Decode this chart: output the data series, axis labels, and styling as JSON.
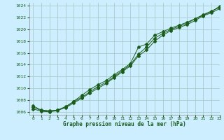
{
  "xlabel": "Graphe pression niveau de la mer (hPa)",
  "background_color": "#cceeff",
  "grid_color": "#aacccc",
  "line_color": "#1a5c1a",
  "xlim": [
    -0.5,
    23
  ],
  "ylim": [
    1005.5,
    1024.5
  ],
  "yticks": [
    1006,
    1008,
    1010,
    1012,
    1014,
    1016,
    1018,
    1020,
    1022,
    1024
  ],
  "xticks": [
    0,
    1,
    2,
    3,
    4,
    5,
    6,
    7,
    8,
    9,
    10,
    11,
    12,
    13,
    14,
    15,
    16,
    17,
    18,
    19,
    20,
    21,
    22,
    23
  ],
  "line1": [
    1007.0,
    1006.3,
    1006.2,
    1006.3,
    1006.7,
    1007.5,
    1008.3,
    1009.2,
    1010.0,
    1010.8,
    1011.8,
    1012.8,
    1013.8,
    1015.5,
    1016.5,
    1018.0,
    1019.0,
    1019.8,
    1020.3,
    1020.8,
    1021.5,
    1022.3,
    1022.8,
    1023.5
  ],
  "line2": [
    1006.5,
    1006.1,
    1006.0,
    1006.2,
    1006.8,
    1007.8,
    1008.8,
    1009.8,
    1010.6,
    1011.3,
    1012.3,
    1013.2,
    1014.2,
    1017.0,
    1017.5,
    1019.0,
    1019.6,
    1020.2,
    1020.7,
    1021.2,
    1021.8,
    1022.4,
    1023.0,
    1023.9
  ],
  "line3": [
    1006.8,
    1006.2,
    1006.1,
    1006.3,
    1006.9,
    1007.7,
    1008.5,
    1009.4,
    1010.3,
    1011.0,
    1012.0,
    1013.0,
    1014.0,
    1015.8,
    1017.0,
    1018.5,
    1019.3,
    1020.0,
    1020.5,
    1021.0,
    1021.8,
    1022.5,
    1023.1,
    1023.7
  ]
}
